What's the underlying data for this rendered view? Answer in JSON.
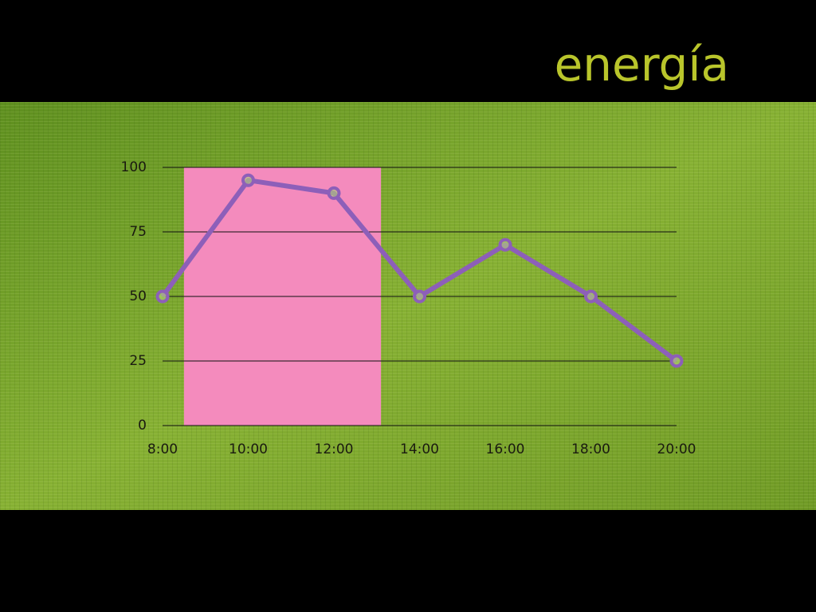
{
  "chart_data": {
    "type": "line",
    "title": "energía",
    "x": [
      8,
      10,
      12,
      14,
      16,
      18,
      20
    ],
    "series": [
      {
        "color": "#8d5fb9",
        "values": [
          50,
          95,
          90,
          50,
          70,
          50,
          25
        ]
      }
    ],
    "xlim": [
      8,
      20
    ],
    "xticks": [
      {
        "value": 8,
        "label": "8:00"
      },
      {
        "value": 10,
        "label": "10:00"
      },
      {
        "value": 12,
        "label": "12:00"
      },
      {
        "value": 14,
        "label": "14:00"
      },
      {
        "value": 16,
        "label": "16:00"
      },
      {
        "value": 18,
        "label": "18:00"
      },
      {
        "value": 20,
        "label": "20:00"
      }
    ],
    "ylim": [
      0,
      100
    ],
    "yticks": [
      0,
      25,
      50,
      75,
      100
    ],
    "grid": true,
    "spans": [
      {
        "xmin": 8.5,
        "xmax": 13.1,
        "ymin": 0,
        "ymax": 100,
        "color": "#f48bbd"
      }
    ]
  }
}
